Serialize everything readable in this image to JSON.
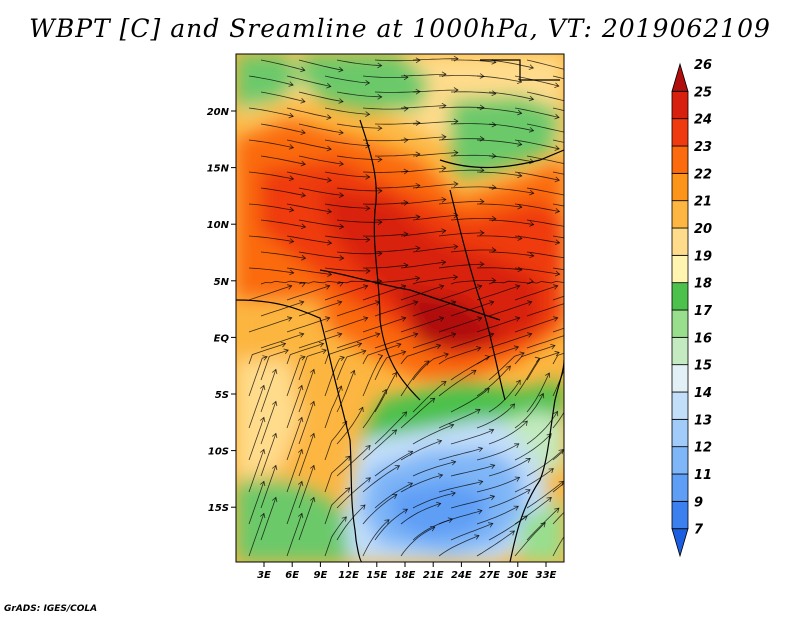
{
  "title": "WBPT [C] and Sreamline at 1000hPa, VT: 2019062109",
  "credit": "GrADS: IGES/COLA",
  "map": {
    "lon_labels": [
      "3E",
      "6E",
      "9E",
      "12E",
      "15E",
      "18E",
      "21E",
      "24E",
      "27E",
      "30E",
      "33E"
    ],
    "lat_labels": [
      "20N",
      "15N",
      "10N",
      "5N",
      "EQ",
      "5S",
      "10S",
      "15S"
    ]
  },
  "colorbar": {
    "labels": [
      "7",
      "9",
      "11",
      "12",
      "13",
      "14",
      "15",
      "16",
      "17",
      "18",
      "19",
      "20",
      "21",
      "22",
      "23",
      "24",
      "25",
      "26"
    ],
    "colors": [
      "#1c5ee0",
      "#3c80ef",
      "#5e9ef5",
      "#7fb6f7",
      "#a1cbf9",
      "#c2def9",
      "#e3f1f7",
      "#c3eac0",
      "#98de8d",
      "#4cc14c",
      "#fff5b0",
      "#ffdc8c",
      "#fcb641",
      "#fb9418",
      "#fb6b0e",
      "#ef3a0f",
      "#d8200f",
      "#b00d0d"
    ]
  }
}
